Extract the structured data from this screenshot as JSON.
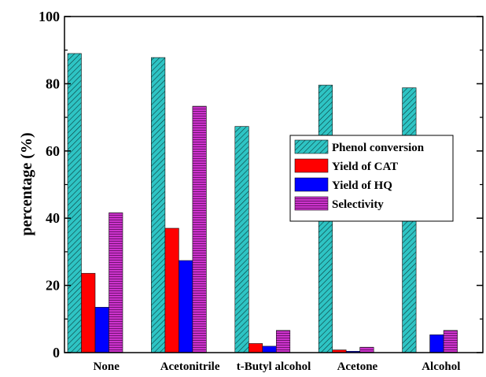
{
  "chart_data": {
    "type": "bar",
    "ylabel": "percentage (%)",
    "xlabel": "",
    "ylim": [
      0,
      100
    ],
    "yticks": [
      0,
      20,
      40,
      60,
      80,
      100
    ],
    "categories": [
      "None",
      "Acetonitrile",
      "t-Butyl alcohol",
      "Acetone",
      "Alcohol"
    ],
    "series": [
      {
        "name": "Phenol conversion",
        "values": [
          89.0,
          87.8,
          67.3,
          79.6,
          78.8
        ],
        "color": "#2ec4c4",
        "pattern": "diagonal-hatch"
      },
      {
        "name": "Yield of CAT",
        "values": [
          23.6,
          37.0,
          2.7,
          0.8,
          0.0
        ],
        "color": "#ff0000",
        "pattern": "solid"
      },
      {
        "name": "Yield of HQ",
        "values": [
          13.5,
          27.4,
          1.9,
          0.4,
          5.3
        ],
        "color": "#0000ff",
        "pattern": "solid"
      },
      {
        "name": "Selectivity",
        "values": [
          41.6,
          73.3,
          6.6,
          1.6,
          6.6
        ],
        "color": "#cc33cc",
        "pattern": "horizontal-hatch"
      }
    ],
    "legend_position": "center-right",
    "grid": false
  }
}
